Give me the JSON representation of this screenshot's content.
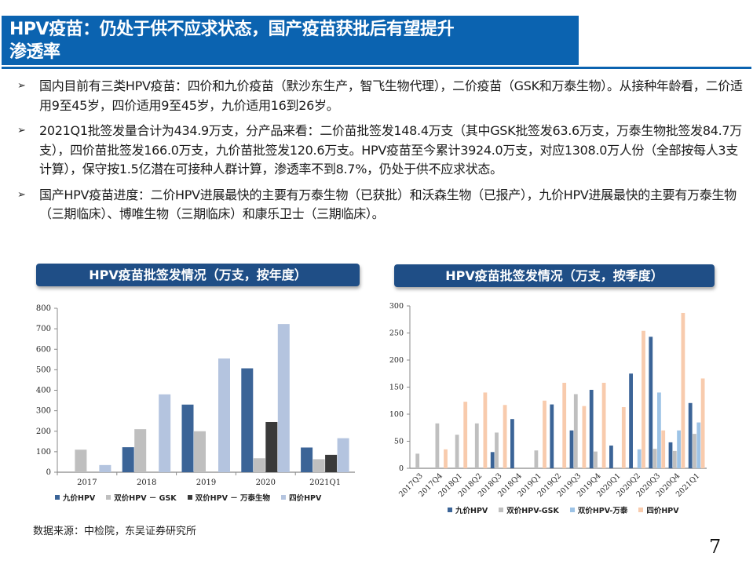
{
  "title": {
    "line1": "HPV疫苗：仍处于供不应求状态，国产疫苗获批后有望提升",
    "line2": "渗透率"
  },
  "bullets": [
    "国内目前有三类HPV疫苗：四价和九价疫苗（默沙东生产，智飞生物代理），二价疫苗（GSK和万泰生物）。从接种年龄看，二价适用9至45岁，四价适用9至45岁，九价适用16到26岁。",
    "2021Q1批签发量合计为434.9万支，分产品来看：二价苗批签发148.4万支（其中GSK批签发63.6万支，万泰生物批签发84.7万支），四价苗批签发166.0万支，九价苗批签发120.6万支。HPV疫苗至今累计3924.0万支，对应1308.0万人份（全部按每人3支计算），保守按1.5亿潜在可接种人群计算，渗透率不到8.7%，仍处于供不应求状态。",
    "国产HPV疫苗进度：二价HPV进展最快的主要有万泰生物（已获批）和沃森生物（已报产），九价HPV进展最快的主要有万泰生物（三期临床）、博唯生物（三期临床）和康乐卫士（三期临床）。"
  ],
  "bullet_marker": "➢",
  "colors": {
    "title_bg": "#0b63b0",
    "header_bg": "#1f4e86",
    "nine_valent": "#3b6497",
    "gsk": "#bfbfbf",
    "wantai_annual": "#3a3a3a",
    "four_valent_annual": "#b4c4df",
    "wantai_quarterly": "#9dc3e6",
    "four_valent_quarterly": "#f8cbad"
  },
  "chart_data": [
    {
      "type": "bar",
      "title": "HPV疫苗批签发情况（万支，按年度）",
      "xlabel": "",
      "ylabel": "",
      "ylim": [
        0,
        800
      ],
      "yticks": [
        0,
        100,
        200,
        300,
        400,
        500,
        600,
        700,
        800
      ],
      "categories": [
        "2017",
        "2018",
        "2019",
        "2020",
        "2021Q1"
      ],
      "series": [
        {
          "name": "九价HPV",
          "values": [
            0,
            122,
            330,
            507,
            120.6
          ]
        },
        {
          "name": "双价HPV - GSK",
          "values": [
            110,
            210,
            200,
            68,
            63.6
          ]
        },
        {
          "name": "双价HPV - 万泰生物",
          "values": [
            0,
            0,
            0,
            245,
            84.7
          ]
        },
        {
          "name": "四价HPV",
          "values": [
            35,
            380,
            555,
            723,
            166.0
          ]
        }
      ],
      "legend_position": "bottom",
      "grid": false
    },
    {
      "type": "bar",
      "title": "HPV疫苗批签发情况（万支，按季度）",
      "xlabel": "",
      "ylabel": "",
      "ylim": [
        0,
        300
      ],
      "yticks": [
        0,
        50,
        100,
        150,
        200,
        250,
        300
      ],
      "categories": [
        "2017Q3",
        "2017Q4",
        "2018Q1",
        "2018Q2",
        "2018Q3",
        "2018Q4",
        "2019Q1",
        "2019Q2",
        "2019Q3",
        "2019Q4",
        "2020Q1",
        "2020Q2",
        "2020Q3",
        "2020Q4",
        "2021Q1"
      ],
      "series": [
        {
          "name": "九价HPV",
          "values": [
            0,
            0,
            0,
            0,
            30,
            91,
            0,
            118,
            70,
            145,
            42,
            175,
            243,
            48,
            120.6
          ]
        },
        {
          "name": "双价HPV-GSK",
          "values": [
            27,
            83,
            62,
            83,
            66,
            0,
            33,
            0,
            137,
            31,
            0,
            0,
            36,
            32,
            63.6
          ]
        },
        {
          "name": "双价HPV-万泰",
          "values": [
            0,
            0,
            0,
            0,
            0,
            0,
            0,
            0,
            0,
            0,
            0,
            35,
            140,
            70,
            84.7
          ]
        },
        {
          "name": "四价HPV",
          "values": [
            0,
            35,
            123,
            140,
            117,
            0,
            125,
            158,
            115,
            158,
            113,
            254,
            70,
            287,
            166.0
          ]
        }
      ],
      "legend_position": "bottom",
      "grid": false
    }
  ],
  "legend_left": [
    "九价HPV",
    "双价HPV － GSK",
    "双价HPV － 万泰生物",
    "四价HPV"
  ],
  "legend_right": [
    "九价HPV",
    "双价HPV-GSK",
    "双价HPV-万泰",
    "四价HPV"
  ],
  "source": "数据来源：中检院，东吴证券研究所",
  "page_number": "7"
}
